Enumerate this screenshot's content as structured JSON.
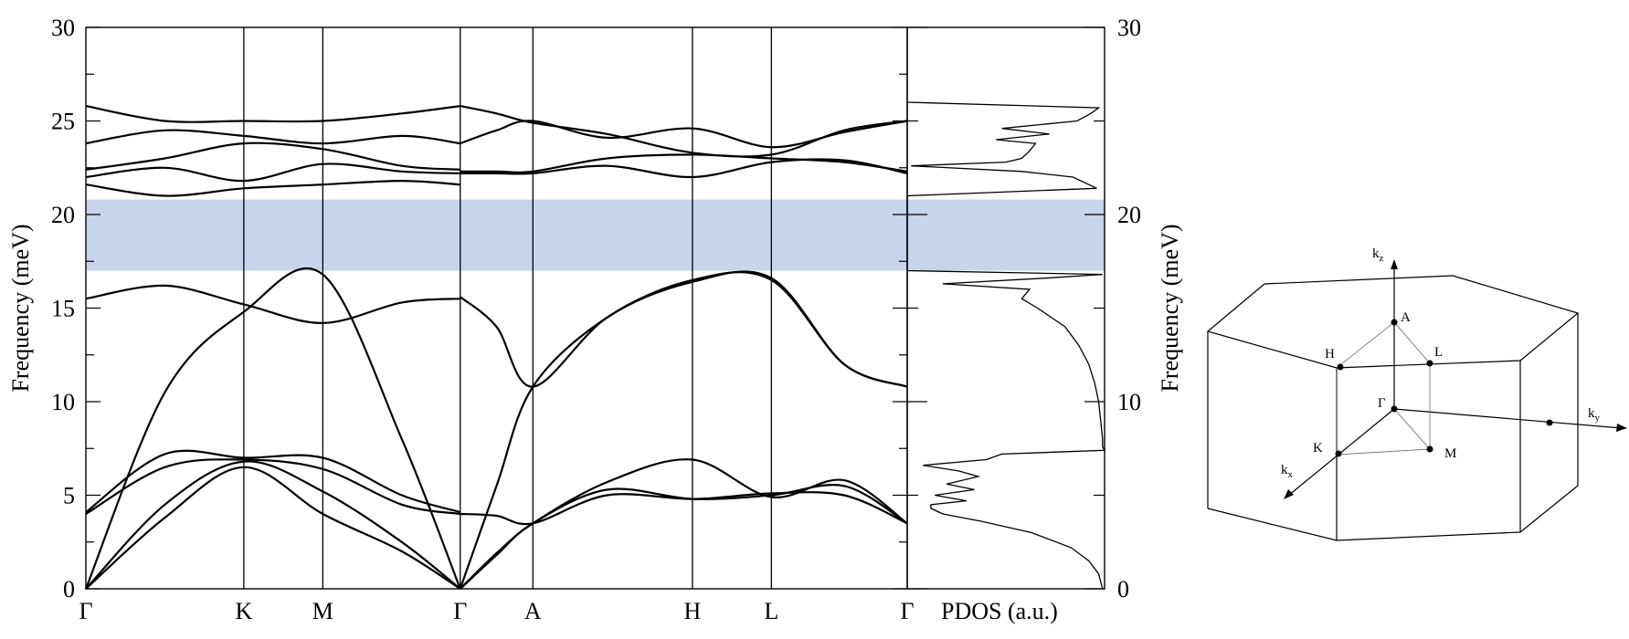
{
  "chart_data": [
    {
      "type": "line",
      "title": "",
      "ylabel": "Frequency (meV)",
      "ylim": [
        0,
        30
      ],
      "y_ticks": [
        0,
        5,
        10,
        15,
        20,
        25,
        30
      ],
      "kpath_labels": [
        "Γ",
        "K",
        "M",
        "Γ",
        "A",
        "H",
        "L",
        "Γ"
      ],
      "kpath_positions": [
        0,
        1,
        1.5,
        2.37,
        2.83,
        3.84,
        4.34,
        5.2
      ],
      "x_range": [
        0,
        5.2
      ],
      "gap_band": [
        17.0,
        20.8
      ],
      "gap_color": "#c8d4ec",
      "line_color": "#000000",
      "series": [
        {
          "x": [
            0,
            0.5,
            1,
            1.5,
            2.0,
            2.37
          ],
          "values": [
            0,
            3.8,
            6.5,
            4.0,
            2.0,
            0
          ]
        },
        {
          "x": [
            0,
            0.5,
            1,
            1.5,
            2.0,
            2.37
          ],
          "values": [
            0,
            4.5,
            6.8,
            5.2,
            2.5,
            0
          ]
        },
        {
          "x": [
            0,
            0.5,
            1,
            1.5,
            2.0,
            2.37
          ],
          "values": [
            0,
            10.5,
            14.8,
            16.8,
            8.0,
            0
          ]
        },
        {
          "x": [
            0,
            0.5,
            1,
            1.5,
            2.0,
            2.37
          ],
          "values": [
            4.0,
            6.5,
            6.9,
            6.4,
            4.5,
            4.0
          ]
        },
        {
          "x": [
            0,
            0.5,
            1,
            1.5,
            2.0,
            2.37
          ],
          "values": [
            4.1,
            7.2,
            7.0,
            7.0,
            5.0,
            4.1
          ]
        },
        {
          "x": [
            0,
            0.5,
            1,
            1.5,
            2.0,
            2.37
          ],
          "values": [
            15.5,
            16.2,
            15.2,
            14.2,
            15.3,
            15.5
          ]
        },
        {
          "x": [
            0,
            0.5,
            1,
            1.5,
            2.0,
            2.37
          ],
          "values": [
            21.6,
            21.0,
            21.4,
            21.6,
            21.8,
            21.6
          ]
        },
        {
          "x": [
            0,
            0.5,
            1,
            1.5,
            2.0,
            2.37
          ],
          "values": [
            22.0,
            22.5,
            21.8,
            22.7,
            22.3,
            22.2
          ]
        },
        {
          "x": [
            0,
            0.5,
            1,
            1.5,
            2.0,
            2.37
          ],
          "values": [
            22.4,
            23.0,
            23.8,
            23.5,
            22.6,
            22.4
          ]
        },
        {
          "x": [
            0,
            0.5,
            1,
            1.5,
            2.0,
            2.37
          ],
          "values": [
            23.8,
            24.5,
            24.2,
            23.8,
            24.2,
            23.8
          ]
        },
        {
          "x": [
            0,
            0.5,
            1,
            1.5,
            2.0,
            2.37
          ],
          "values": [
            25.8,
            25.0,
            25.0,
            25.0,
            25.4,
            25.8
          ]
        },
        {
          "x": [
            2.37,
            2.6,
            2.83,
            3.3,
            3.84,
            4.34,
            4.8,
            5.2
          ],
          "values": [
            0,
            1.8,
            3.5,
            5.3,
            4.8,
            5.0,
            5.5,
            3.5
          ]
        },
        {
          "x": [
            2.37,
            2.6,
            2.83,
            3.3,
            3.84,
            4.34,
            4.8,
            5.2
          ],
          "values": [
            0,
            1.9,
            3.5,
            5.7,
            6.9,
            4.9,
            5.8,
            3.5
          ]
        },
        {
          "x": [
            2.37,
            2.6,
            2.83,
            3.3,
            3.84,
            4.34,
            4.8,
            5.2
          ],
          "values": [
            4.0,
            3.9,
            3.5,
            5.0,
            4.8,
            5.1,
            5.0,
            3.5
          ]
        },
        {
          "x": [
            2.37,
            2.6,
            2.83,
            3.3,
            3.84,
            4.34,
            4.8,
            5.2
          ],
          "values": [
            0,
            5.5,
            10.8,
            14.5,
            16.5,
            16.5,
            12.0,
            10.8
          ]
        },
        {
          "x": [
            2.37,
            2.6,
            2.83,
            3.3,
            3.84,
            4.34,
            4.8,
            5.2
          ],
          "values": [
            15.6,
            14.0,
            10.8,
            14.5,
            16.4,
            16.6,
            12.0,
            10.8
          ]
        },
        {
          "x": [
            2.37,
            2.6,
            2.83,
            3.3,
            3.84,
            4.34,
            4.8,
            5.2
          ],
          "values": [
            22.2,
            22.2,
            22.2,
            22.6,
            22.0,
            22.8,
            22.9,
            22.2
          ]
        },
        {
          "x": [
            2.37,
            2.6,
            2.83,
            3.3,
            3.84,
            4.34,
            4.8,
            5.2
          ],
          "values": [
            22.3,
            22.3,
            22.3,
            23.0,
            23.2,
            23.0,
            22.8,
            22.3
          ]
        },
        {
          "x": [
            2.37,
            2.6,
            2.83,
            3.3,
            3.84,
            4.34,
            4.8,
            5.2
          ],
          "values": [
            23.8,
            24.5,
            25.0,
            24.1,
            24.6,
            23.6,
            24.4,
            25.0
          ]
        },
        {
          "x": [
            2.37,
            2.6,
            2.83,
            3.3,
            3.84,
            4.34,
            4.8,
            5.2
          ],
          "values": [
            25.8,
            25.4,
            24.9,
            24.3,
            23.3,
            23.2,
            24.5,
            25.0
          ]
        }
      ]
    },
    {
      "type": "line",
      "title": "",
      "xlabel": "PDOS (a.u.)",
      "ylabel": "Frequency (meV)",
      "ylim": [
        0,
        30
      ],
      "y_ticks": [
        0,
        10,
        20,
        30
      ],
      "xlim": [
        0,
        1
      ],
      "series": [
        {
          "y": [
            0,
            0.8,
            1.5,
            2.2,
            3.0,
            3.6,
            4.0,
            4.3,
            4.5,
            4.7,
            5.0,
            5.3,
            5.6,
            6.0,
            6.3,
            6.6,
            6.9,
            7.2,
            7.4,
            7.6,
            8.0,
            9.0,
            10.0,
            11.0,
            12.0,
            13.0,
            14.0,
            15.0,
            15.5,
            16.0,
            16.3,
            16.6,
            16.8,
            17.0,
            21.0,
            21.4,
            22.0,
            22.3,
            22.6,
            22.8,
            23.0,
            23.4,
            23.8,
            24.0,
            24.3,
            24.6,
            25.0,
            25.4,
            25.7,
            26.0
          ],
          "values": [
            0.99,
            0.97,
            0.92,
            0.83,
            0.63,
            0.38,
            0.18,
            0.12,
            0.12,
            0.3,
            0.14,
            0.34,
            0.2,
            0.36,
            0.26,
            0.08,
            0.4,
            0.48,
            1.0,
            0.99,
            0.99,
            0.98,
            0.97,
            0.95,
            0.92,
            0.87,
            0.8,
            0.66,
            0.58,
            0.62,
            0.18,
            0.7,
            0.99,
            0.0,
            0.0,
            0.96,
            0.84,
            0.58,
            0.02,
            0.5,
            0.58,
            0.62,
            0.65,
            0.45,
            0.72,
            0.48,
            0.86,
            0.93,
            0.97,
            0.0
          ]
        }
      ]
    }
  ],
  "diagram": {
    "axes": {
      "kz": "k",
      "kz_sub": "z",
      "ky": "k",
      "ky_sub": "y",
      "kx": "k",
      "kx_sub": "x"
    },
    "points": [
      "A",
      "H",
      "L",
      "Γ",
      "K",
      "M"
    ]
  }
}
